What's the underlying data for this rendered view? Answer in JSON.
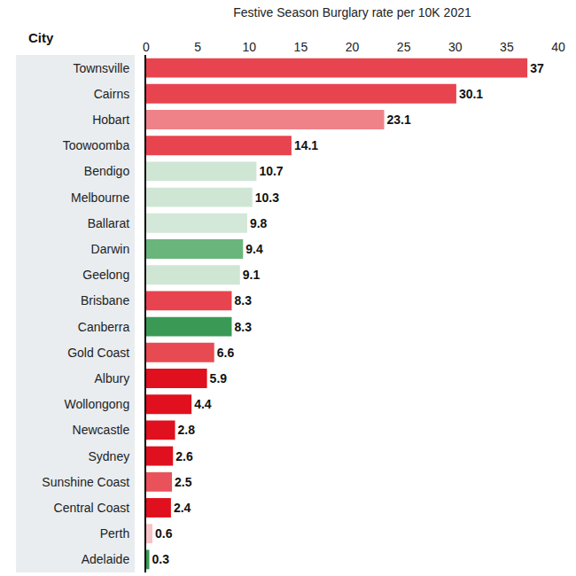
{
  "chart_data": {
    "type": "bar",
    "title": "Festive Season Burglary rate per 10K 2021",
    "ylabel": "City",
    "orientation": "horizontal",
    "categories": [
      "Townsville",
      "Cairns",
      "Hobart",
      "Toowoomba",
      "Bendigo",
      "Melbourne",
      "Ballarat",
      "Darwin",
      "Geelong",
      "Brisbane",
      "Canberra",
      "Gold Coast",
      "Albury",
      "Wollongong",
      "Newcastle",
      "Sydney",
      "Sunshine Coast",
      "Central Coast",
      "Perth",
      "Adelaide"
    ],
    "values": [
      37,
      30.1,
      23.1,
      14.1,
      10.7,
      10.3,
      9.8,
      9.4,
      9.1,
      8.3,
      8.3,
      6.6,
      5.9,
      4.4,
      2.8,
      2.6,
      2.5,
      2.4,
      0.6,
      0.3
    ],
    "colors": [
      "#e8444f",
      "#e8444f",
      "#ee8288",
      "#e8444f",
      "#cfe6d5",
      "#cfe6d5",
      "#d3e8d8",
      "#6ab57c",
      "#cfe6d5",
      "#e8444f",
      "#3a9a55",
      "#e84a52",
      "#e0101e",
      "#e0101e",
      "#e0101e",
      "#e0101e",
      "#e9525a",
      "#e0101e",
      "#f5c3c6",
      "#3a9a55"
    ],
    "xlim": [
      0,
      40
    ],
    "xticks": [
      0,
      5,
      10,
      15,
      20,
      25,
      30,
      35,
      40
    ],
    "grid": false,
    "data_labels": true
  }
}
